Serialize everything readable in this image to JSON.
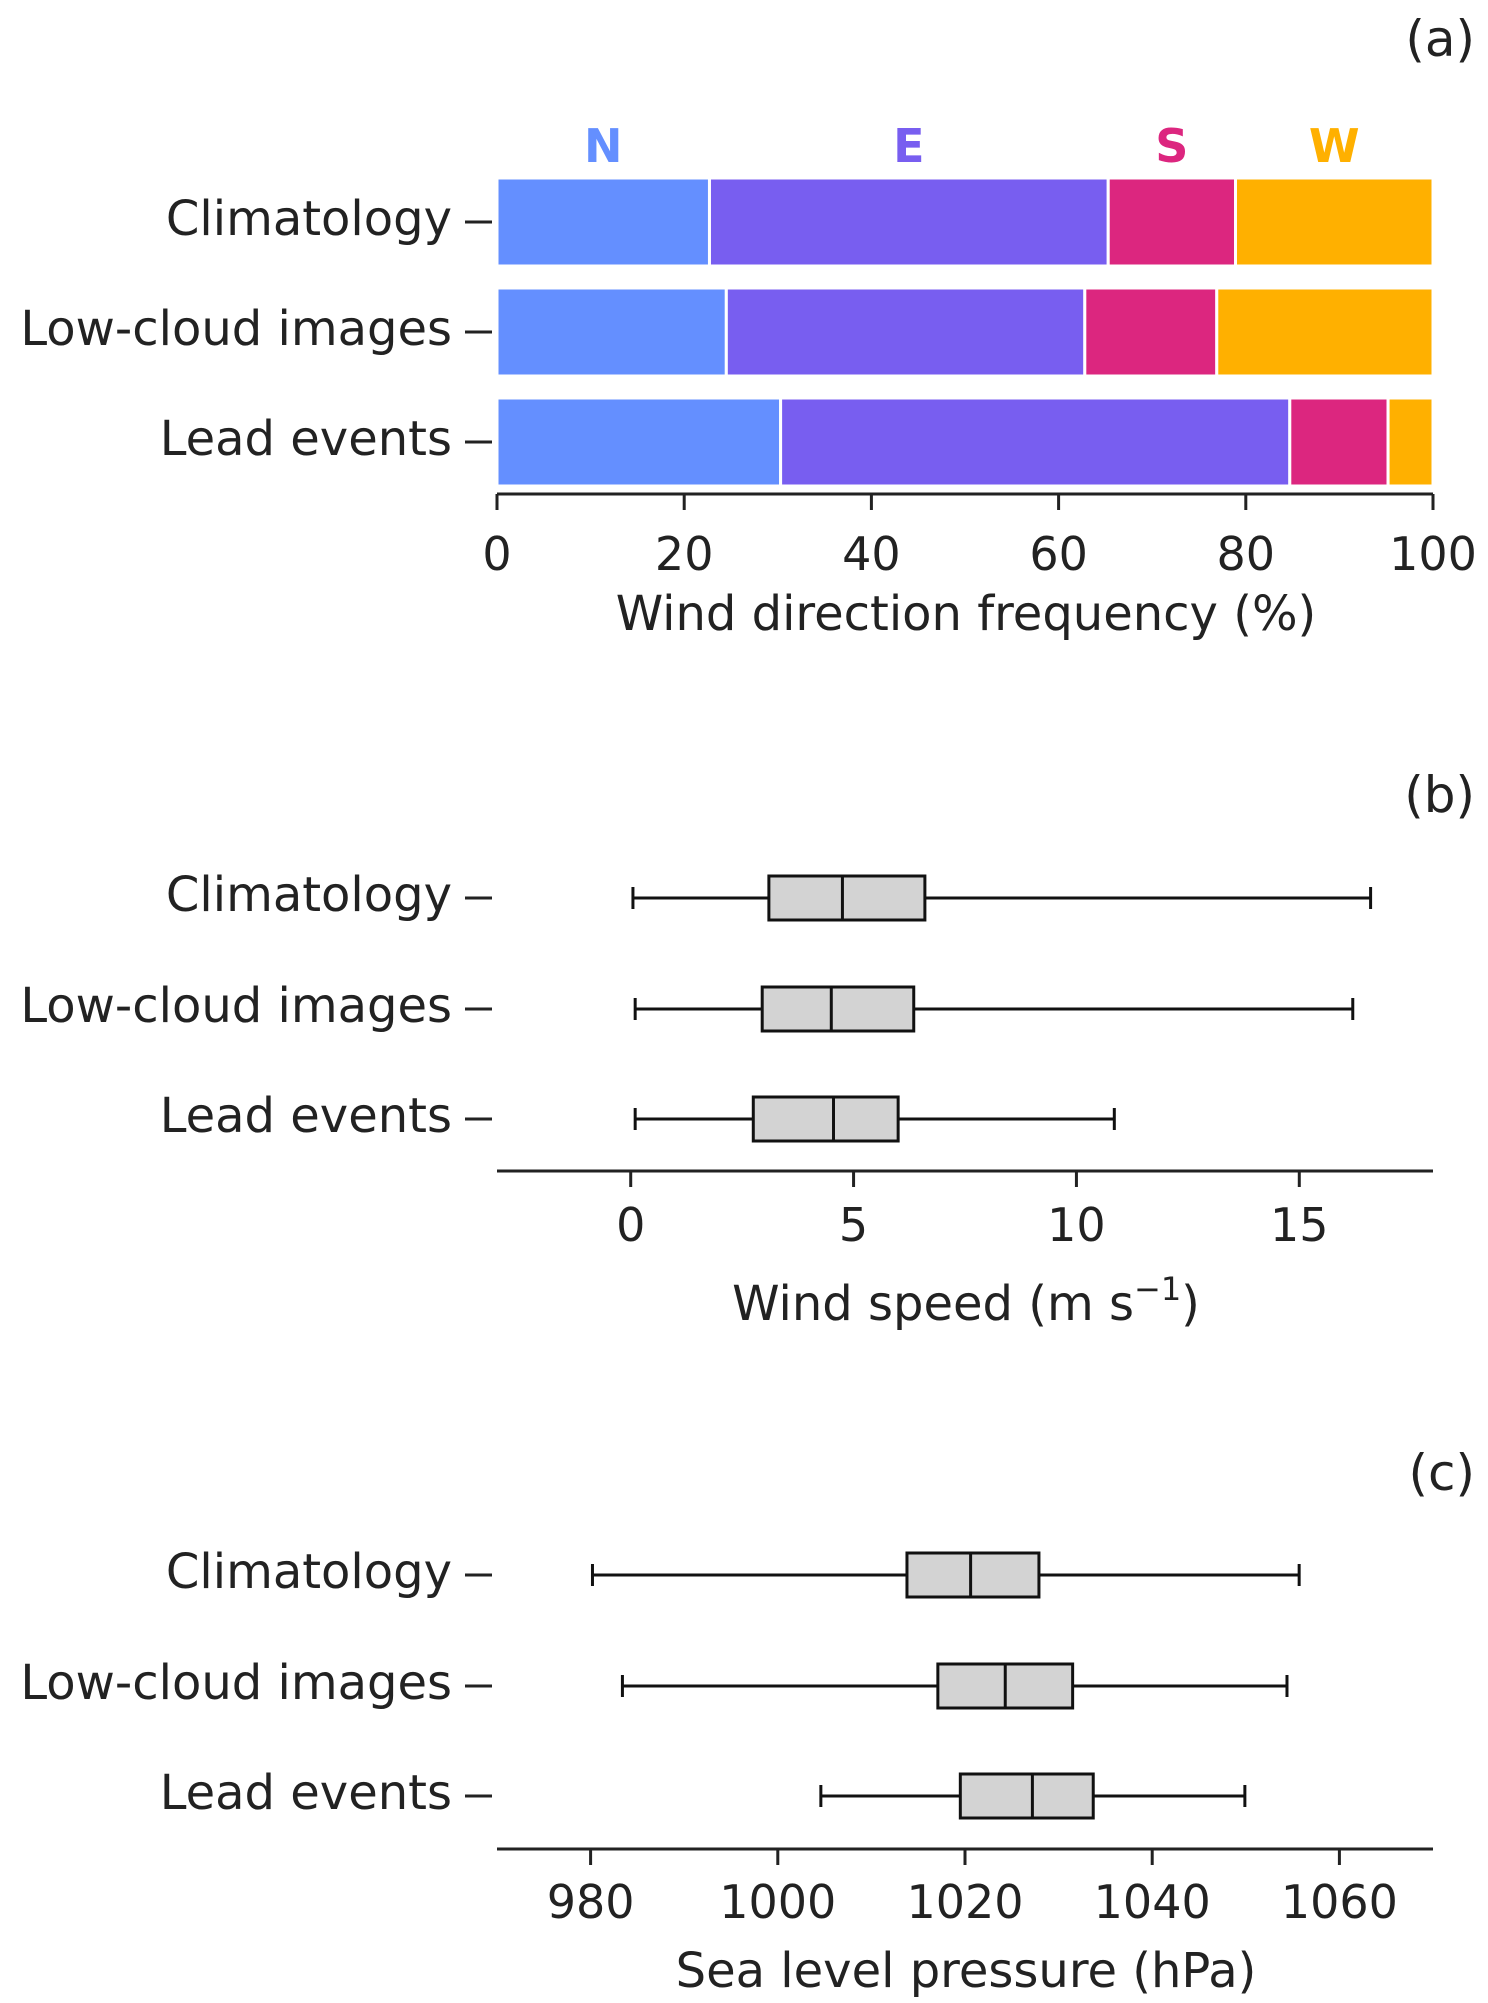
{
  "chart_data": [
    {
      "type": "bar",
      "orientation": "horizontal",
      "stacked": true,
      "panel_label": "(a)",
      "categories": [
        "Climatology",
        "Low-cloud images",
        "Lead events"
      ],
      "series": [
        {
          "name": "N",
          "color": "#648fff",
          "values": [
            22.7,
            24.5,
            30.3
          ]
        },
        {
          "name": "E",
          "color": "#785ef0",
          "values": [
            42.6,
            38.3,
            54.4
          ]
        },
        {
          "name": "S",
          "color": "#dc267f",
          "values": [
            13.6,
            14.1,
            10.5
          ]
        },
        {
          "name": "W",
          "color": "#ffb000",
          "values": [
            21.1,
            23.1,
            4.8
          ]
        }
      ],
      "xlabel": "Wind direction frequency (%)",
      "xlim": [
        0,
        100
      ],
      "xticks": [
        0,
        20,
        40,
        60,
        80,
        100
      ],
      "xtick_labels": [
        "0",
        "20",
        "40",
        "60",
        "80",
        "100"
      ],
      "legend": "series names above bars, colored text"
    },
    {
      "type": "box",
      "orientation": "horizontal",
      "panel_label": "(b)",
      "categories": [
        "Climatology",
        "Low-cloud images",
        "Lead events"
      ],
      "boxes": [
        {
          "whislo": 0.05,
          "q1": 3.1,
          "med": 4.75,
          "q3": 6.6,
          "whishi": 16.6
        },
        {
          "whislo": 0.1,
          "q1": 2.95,
          "med": 4.5,
          "q3": 6.35,
          "whishi": 16.2
        },
        {
          "whislo": 0.1,
          "q1": 2.75,
          "med": 4.55,
          "q3": 6.0,
          "whishi": 10.85
        }
      ],
      "box_color": "#d3d3d3",
      "xlabel_main": "Wind speed (m s",
      "xlabel_sup": "−1",
      "xlabel_end": ")",
      "xlim": [
        -3,
        18
      ],
      "xticks": [
        0,
        5,
        10,
        15
      ],
      "xtick_labels": [
        "0",
        "5",
        "10",
        "15"
      ]
    },
    {
      "type": "box",
      "orientation": "horizontal",
      "panel_label": "(c)",
      "categories": [
        "Climatology",
        "Low-cloud images",
        "Lead events"
      ],
      "boxes": [
        {
          "whislo": 980.2,
          "q1": 1013.8,
          "med": 1020.6,
          "q3": 1027.9,
          "whishi": 1055.7
        },
        {
          "whislo": 983.4,
          "q1": 1017.1,
          "med": 1024.3,
          "q3": 1031.5,
          "whishi": 1054.4
        },
        {
          "whislo": 1004.6,
          "q1": 1019.5,
          "med": 1027.2,
          "q3": 1033.7,
          "whishi": 1049.9
        }
      ],
      "box_color": "#d3d3d3",
      "xlabel": "Sea level pressure (hPa)",
      "xlim": [
        970,
        1070
      ],
      "xticks": [
        980,
        1000,
        1020,
        1040,
        1060
      ],
      "xtick_labels": [
        "980",
        "1000",
        "1020",
        "1040",
        "1060"
      ]
    }
  ]
}
